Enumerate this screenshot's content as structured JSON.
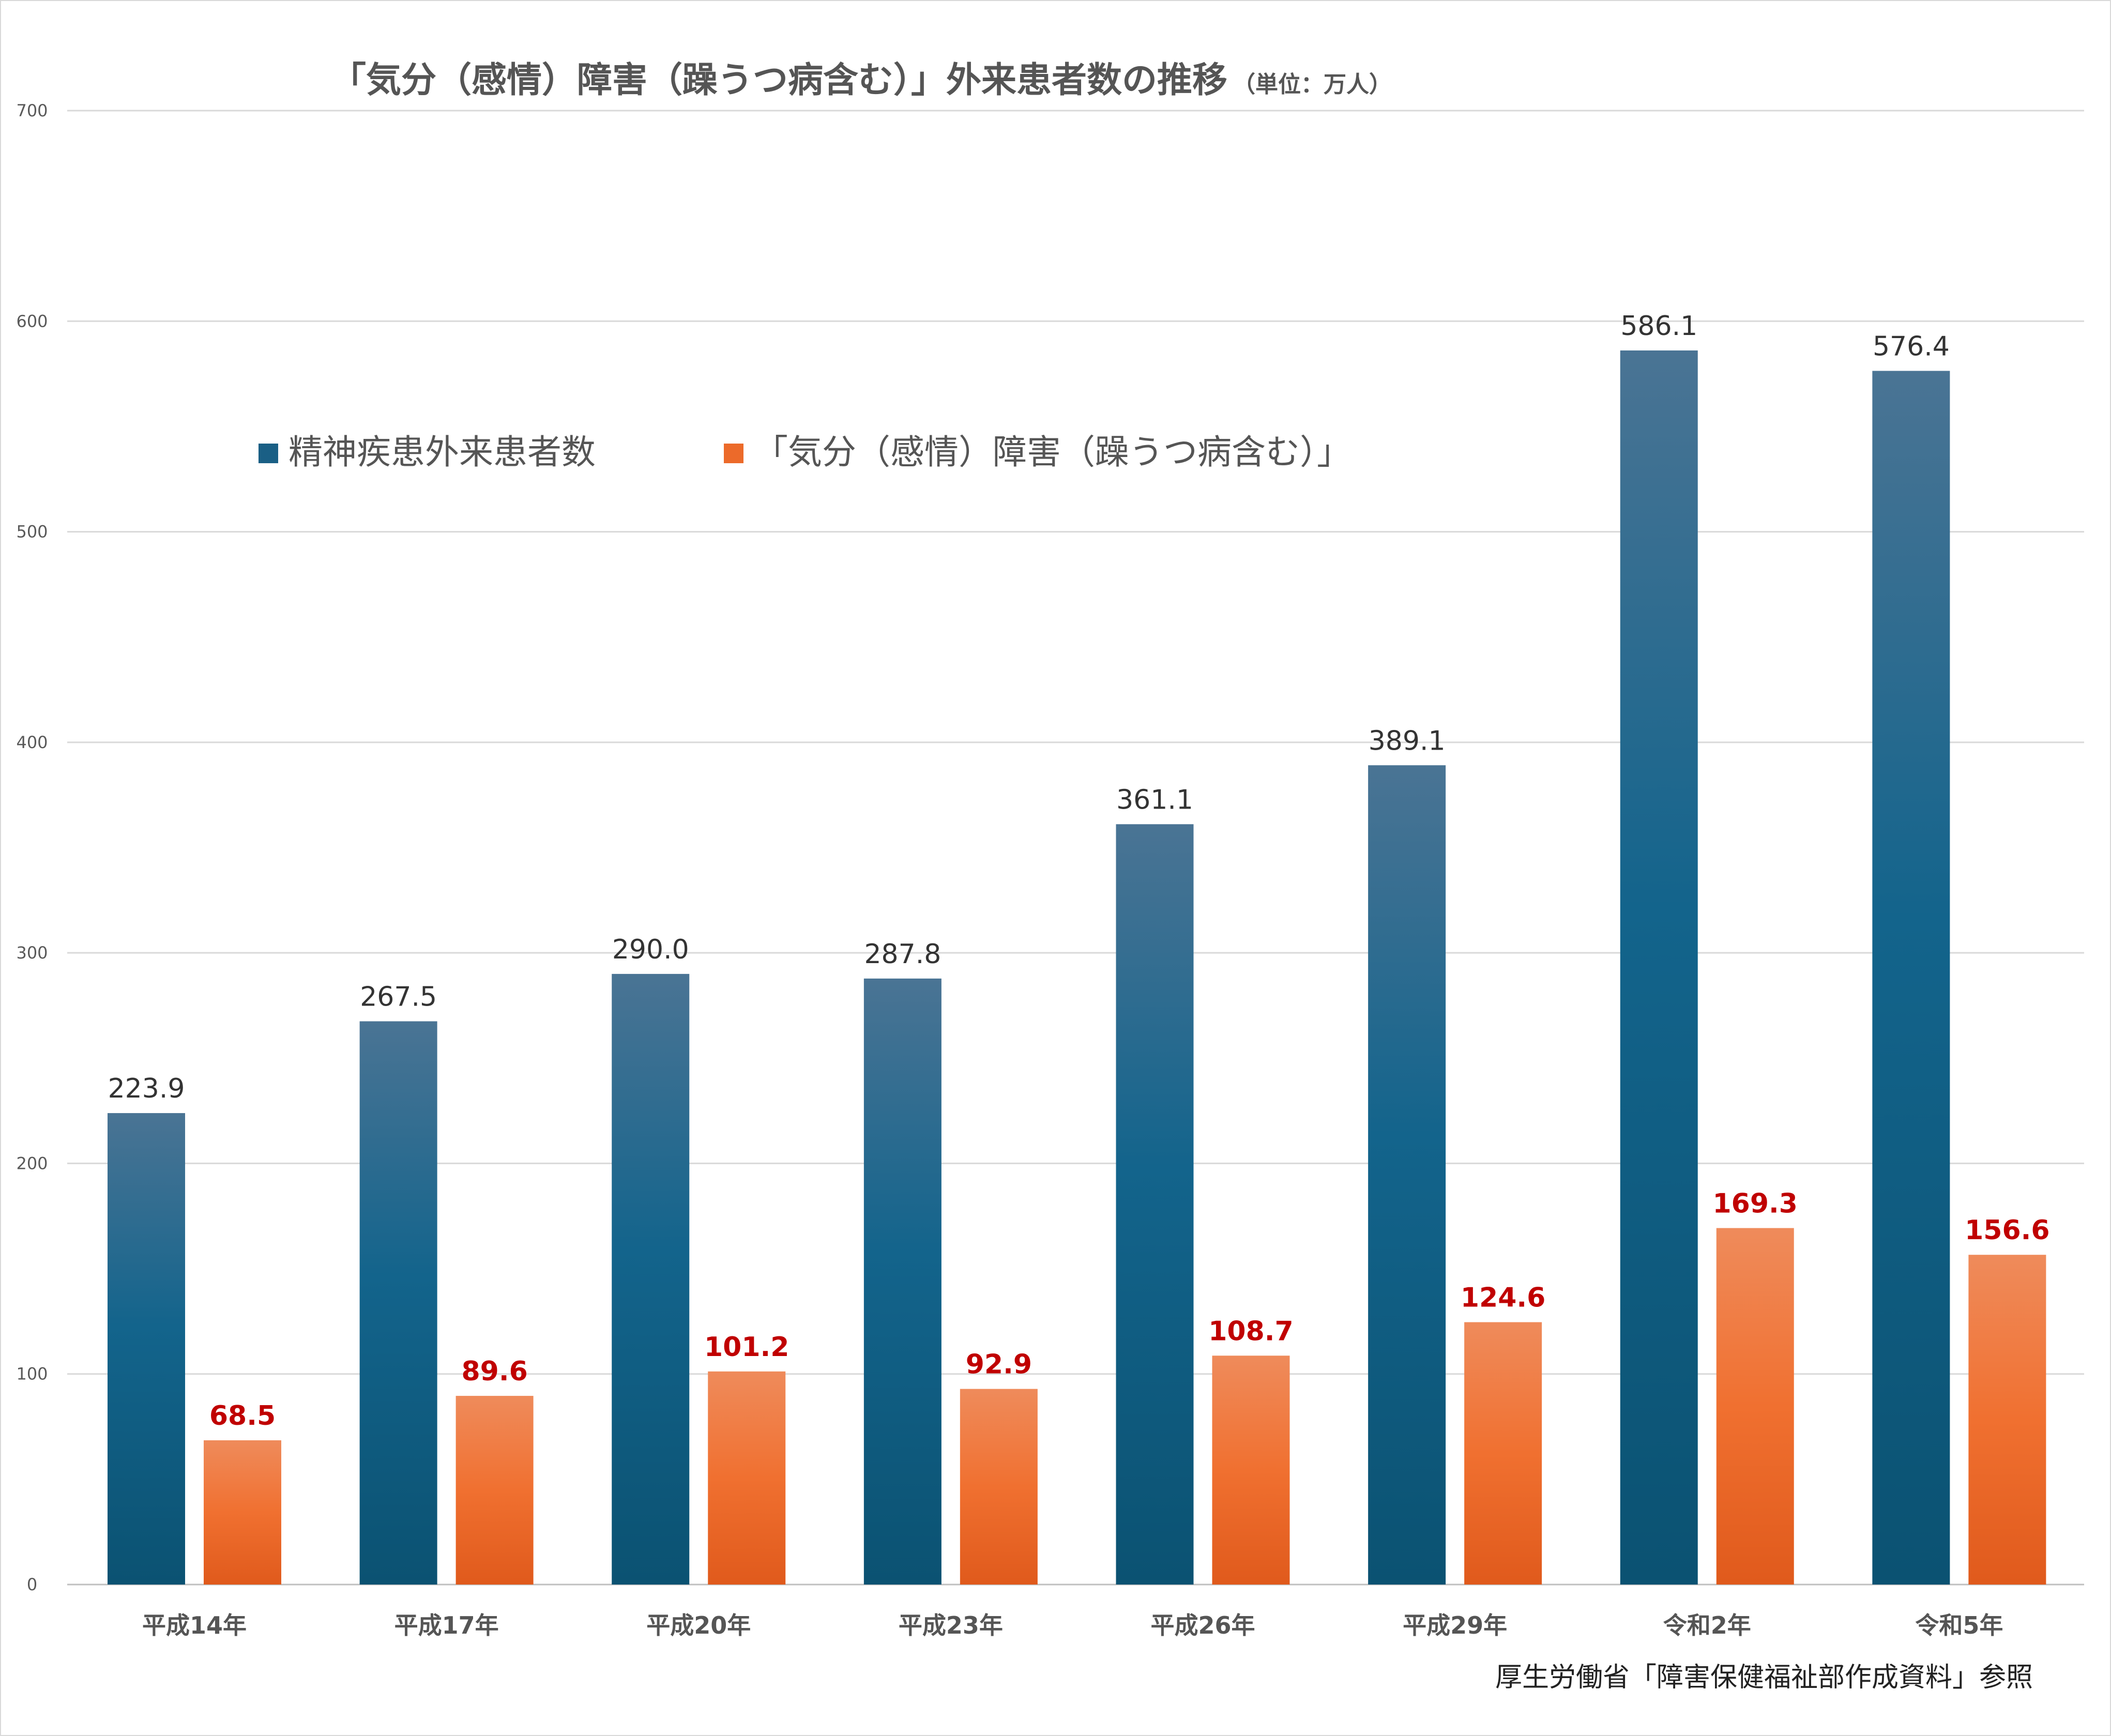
{
  "chart_data": {
    "type": "bar",
    "title": "「気分（感情）障害（躁うつ病含む）」外来患者数の推移",
    "unit_label": "（単位：万人）",
    "categories": [
      "平成14年",
      "平成17年",
      "平成20年",
      "平成23年",
      "平成26年",
      "平成29年",
      "令和2年",
      "令和5年"
    ],
    "series": [
      {
        "name": "精神疾患外来患者数",
        "color": "#1a5f85",
        "label_color": "#333333",
        "values": [
          223.9,
          267.5,
          290.0,
          287.8,
          361.1,
          389.1,
          586.1,
          576.4
        ]
      },
      {
        "name": "「気分（感情）障害（躁うつ病含む）」",
        "color": "#ec6a2a",
        "label_color": "#c00000",
        "values": [
          68.5,
          89.6,
          101.2,
          92.9,
          108.7,
          124.6,
          169.3,
          156.6
        ]
      }
    ],
    "ylim": [
      0,
      700
    ],
    "yticks": [
      0,
      100,
      200,
      300,
      400,
      500,
      600,
      700
    ],
    "grid": true,
    "legend": "top-left",
    "xlabel": "",
    "ylabel": ""
  },
  "source_note": "厚生労働省「障害保健福祉部作成資料」参照"
}
